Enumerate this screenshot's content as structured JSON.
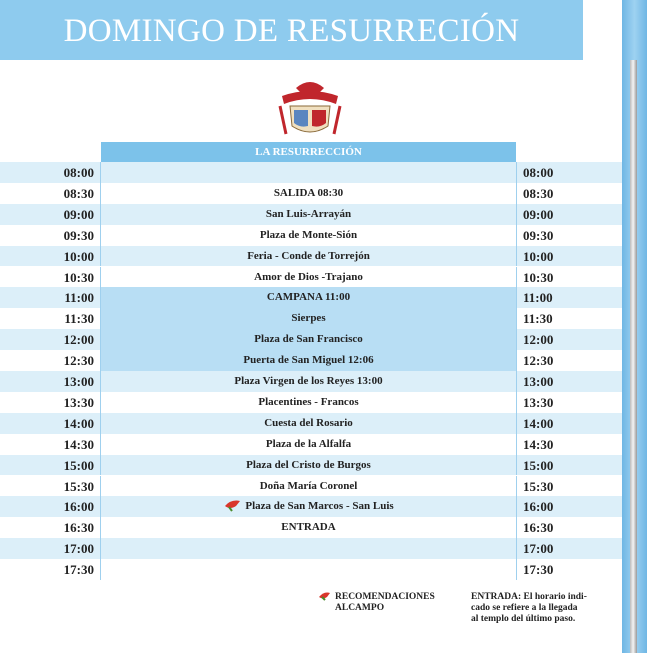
{
  "header": {
    "title": "DOMINGO DE RESURRECIÓN"
  },
  "table": {
    "title": "LA RESURRECCIÓN",
    "rows": [
      {
        "time": "08:00"
      },
      {
        "time": "08:30",
        "stop": "SALIDA 08:30"
      },
      {
        "time": "09:00",
        "stop": "San Luis-Arrayán"
      },
      {
        "time": "09:30",
        "stop": "Plaza de Monte-Sión"
      },
      {
        "time": "10:00",
        "stop": "Feria - Conde de Torrejón"
      },
      {
        "time": "10:30",
        "stop": "Amor de Dios -Trajano"
      },
      {
        "time": "11:00",
        "stop": "CAMPANA 11:00"
      },
      {
        "time": "11:30",
        "stop": "Sierpes"
      },
      {
        "time": "12:00",
        "stop": "Plaza de San Francisco"
      },
      {
        "time": "12:30",
        "stop": "Puerta de San Miguel 12:06"
      },
      {
        "time": "13:00",
        "stop": "Plaza Virgen de los Reyes 13:00"
      },
      {
        "time": "13:30",
        "stop": "Placentines - Francos"
      },
      {
        "time": "14:00",
        "stop": "Cuesta del Rosario"
      },
      {
        "time": "14:30",
        "stop": "Plaza de la Alfalfa"
      },
      {
        "time": "15:00",
        "stop": "Plaza del Cristo de Burgos"
      },
      {
        "time": "15:30",
        "stop": "Doña María Coronel"
      },
      {
        "time": "16:00",
        "stop": "Plaza de San Marcos - San Luis"
      },
      {
        "time": "16:30",
        "stop": "ENTRADA"
      },
      {
        "time": "17:00"
      },
      {
        "time": "17:30"
      }
    ]
  },
  "notes": {
    "recommendations": [
      "RECOMENDACIONES",
      "ALCAMPO"
    ],
    "entrada": [
      "ENTRADA: El horario indi-",
      "cado se refiere a la llegada",
      "al templo del último paso."
    ]
  }
}
